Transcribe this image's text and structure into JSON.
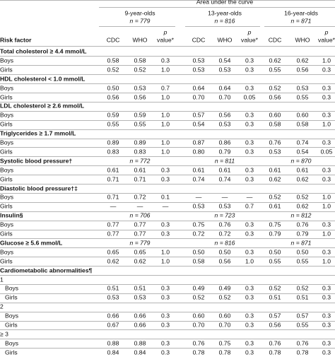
{
  "header": {
    "title": "Area under the curve",
    "groups": [
      {
        "name": "9-year-olds",
        "n": "n = 779"
      },
      {
        "name": "13-year-olds",
        "n": "n = 816"
      },
      {
        "name": "16-year-olds",
        "n": "n = 871"
      }
    ],
    "risk_factor": "Risk factor",
    "columns": [
      "CDC",
      "WHO",
      [
        "p",
        "value*"
      ],
      "CDC",
      "WHO",
      [
        "p",
        "value*"
      ],
      "CDC",
      "WHO",
      [
        "p",
        "value*"
      ]
    ]
  },
  "table": {
    "rows": [
      {
        "heading": "Total cholesterol ≥ 4.4 mmol/L"
      },
      {
        "label": "Boys",
        "cells": [
          "0.58",
          "0.58",
          "0.3",
          "0.53",
          "0.54",
          "0.3",
          "0.62",
          "0.62",
          "1.0"
        ]
      },
      {
        "label": "Girls",
        "cells": [
          "0.52",
          "0.52",
          "1.0",
          "0.53",
          "0.53",
          "0.3",
          "0.55",
          "0.56",
          "0.3"
        ]
      },
      {
        "heading": "HDL cholesterol < 1.0 mmol/L"
      },
      {
        "label": "Boys",
        "cells": [
          "0.50",
          "0.53",
          "0.7",
          "0.64",
          "0.64",
          "0.3",
          "0.52",
          "0.53",
          "0.3"
        ]
      },
      {
        "label": "Girls",
        "cells": [
          "0.56",
          "0.56",
          "1.0",
          "0.70",
          "0.70",
          "0.05",
          "0.56",
          "0.55",
          "0.3"
        ]
      },
      {
        "heading": "LDL cholesterol ≥ 2.6 mmol/L"
      },
      {
        "label": "Boys",
        "cells": [
          "0.59",
          "0.59",
          "1.0",
          "0.57",
          "0.56",
          "0.3",
          "0.60",
          "0.60",
          "0.3"
        ]
      },
      {
        "label": "Girls",
        "cells": [
          "0.55",
          "0.55",
          "1.0",
          "0.54",
          "0.53",
          "0.3",
          "0.58",
          "0.58",
          "1.0"
        ]
      },
      {
        "heading": "Triglycerides ≥ 1.7 mmol/L"
      },
      {
        "label": "Boys",
        "cells": [
          "0.89",
          "0.89",
          "1.0",
          "0.87",
          "0.86",
          "0.3",
          "0.76",
          "0.74",
          "0.3"
        ]
      },
      {
        "label": "Girls",
        "cells": [
          "0.83",
          "0.83",
          "1.0",
          "0.80",
          "0.79",
          "0.3",
          "0.53",
          "0.54",
          "0.05"
        ]
      },
      {
        "heading": "Systolic blood pressure†",
        "n": [
          "n = 772",
          "n = 811",
          "n = 870"
        ]
      },
      {
        "label": "Boys",
        "cells": [
          "0.61",
          "0.61",
          "0.3",
          "0.61",
          "0.61",
          "0.3",
          "0.61",
          "0.61",
          "0.3"
        ]
      },
      {
        "label": "Girls",
        "cells": [
          "0.71",
          "0.71",
          "0.3",
          "0.74",
          "0.74",
          "0.3",
          "0.62",
          "0.62",
          "0.3"
        ]
      },
      {
        "heading": "Diastolic blood pressure†‡"
      },
      {
        "label": "Boys",
        "cells": [
          "0.71",
          "0.72",
          "0.1",
          "—",
          "—",
          "—",
          "0.52",
          "0.52",
          "1.0"
        ]
      },
      {
        "label": "Girls",
        "cells": [
          "—",
          "—",
          "—",
          "0.53",
          "0.53",
          "0.7",
          "0.61",
          "0.62",
          "1.0"
        ]
      },
      {
        "heading": "Insulin§",
        "n": [
          "n = 706",
          "n = 723",
          "n = 812"
        ]
      },
      {
        "label": "Boys",
        "cells": [
          "0.77",
          "0.77",
          "0.3",
          "0.75",
          "0.76",
          "0.3",
          "0.75",
          "0.76",
          "0.3"
        ]
      },
      {
        "label": "Girls",
        "cells": [
          "0.77",
          "0.77",
          "0.3",
          "0.72",
          "0.72",
          "0.3",
          "0.79",
          "0.79",
          "1.0"
        ]
      },
      {
        "heading": "Glucose ≥ 5.6 mmol/L",
        "n": [
          "n = 779",
          "n = 816",
          "n = 871"
        ]
      },
      {
        "label": "Boys",
        "cells": [
          "0.65",
          "0.65",
          "1.0",
          "0.50",
          "0.50",
          "0.3",
          "0.50",
          "0.50",
          "0.3"
        ]
      },
      {
        "label": "Girls",
        "cells": [
          "0.62",
          "0.62",
          "1.0",
          "0.58",
          "0.56",
          "1.0",
          "0.55",
          "0.55",
          "1.0"
        ]
      },
      {
        "heading": "Cardiometabolic abnormalities¶"
      },
      {
        "sub": "1"
      },
      {
        "label": "Boys",
        "cells": [
          "0.51",
          "0.51",
          "0.3",
          "0.49",
          "0.49",
          "0.3",
          "0.52",
          "0.52",
          "0.3"
        ]
      },
      {
        "label": "Girls",
        "cells": [
          "0.53",
          "0.53",
          "0.3",
          "0.52",
          "0.52",
          "0.3",
          "0.51",
          "0.51",
          "0.3"
        ]
      },
      {
        "sub": "2"
      },
      {
        "label": "Boys",
        "cells": [
          "0.66",
          "0.66",
          "0.3",
          "0.60",
          "0.60",
          "0.3",
          "0.57",
          "0.57",
          "0.3"
        ]
      },
      {
        "label": "Girls",
        "cells": [
          "0.67",
          "0.66",
          "0.3",
          "0.70",
          "0.70",
          "0.3",
          "0.56",
          "0.55",
          "0.3"
        ]
      },
      {
        "sub": "≥ 3"
      },
      {
        "label": "Boys",
        "cells": [
          "0.88",
          "0.88",
          "0.3",
          "0.76",
          "0.75",
          "0.3",
          "0.76",
          "0.76",
          "0.3"
        ]
      },
      {
        "label": "Girls",
        "cells": [
          "0.84",
          "0.84",
          "0.3",
          "0.78",
          "0.78",
          "0.3",
          "0.78",
          "0.78",
          "0.3"
        ]
      }
    ]
  }
}
